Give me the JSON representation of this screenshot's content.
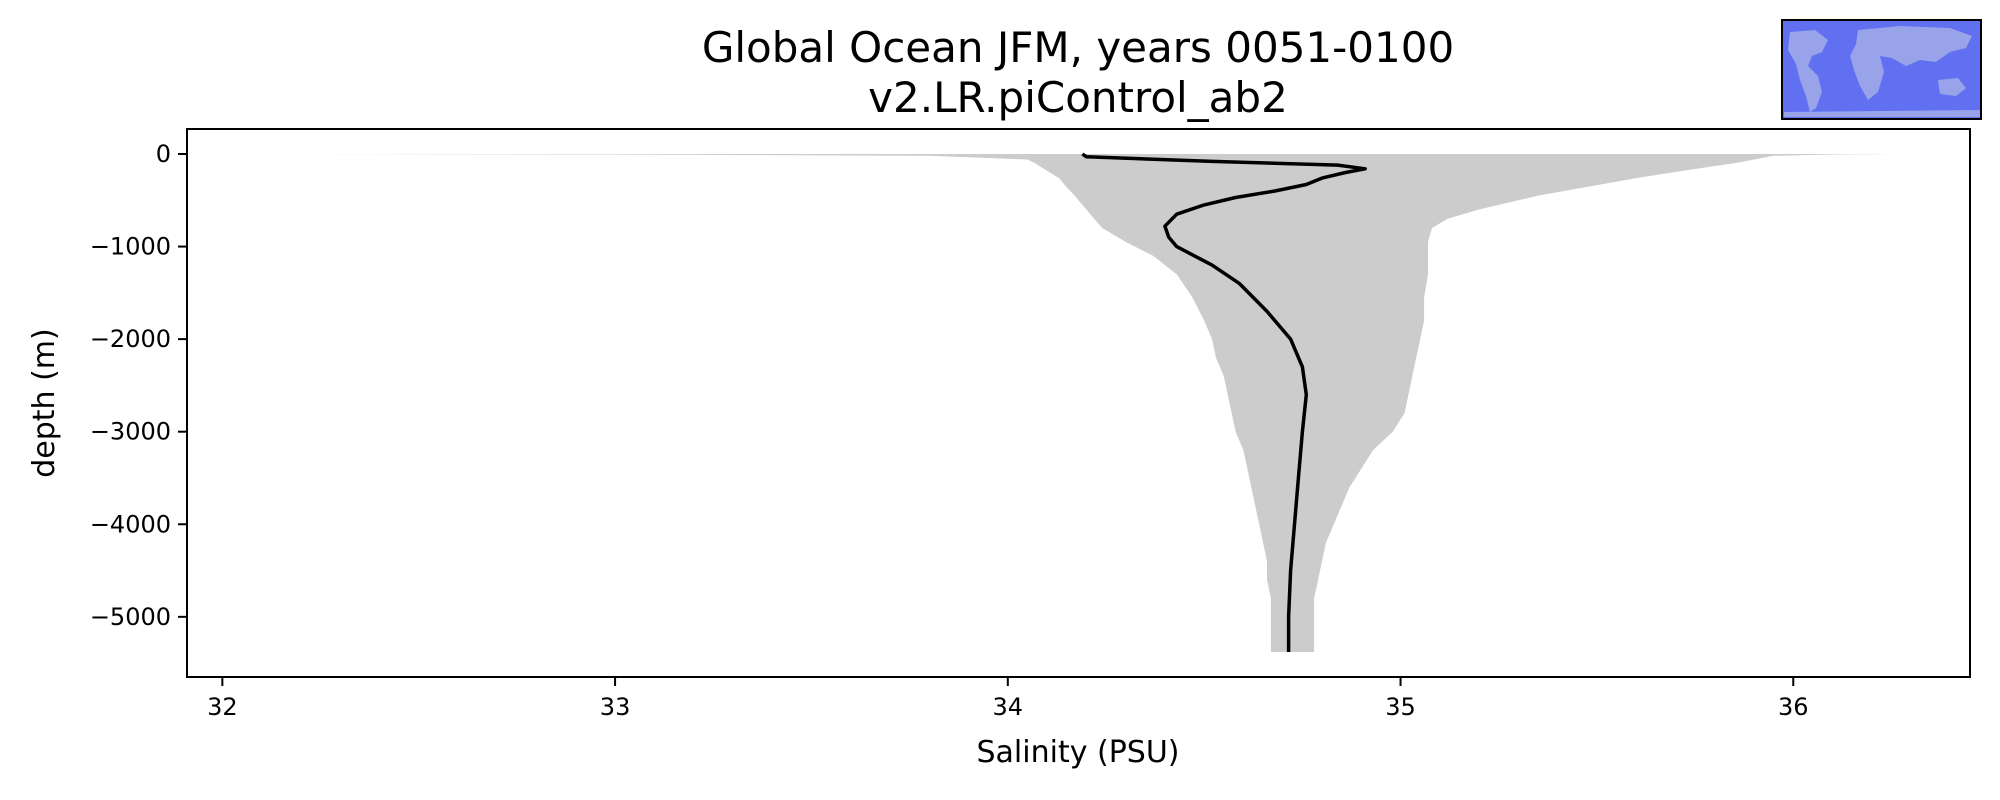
{
  "chart_data": {
    "type": "line",
    "title": "Global Ocean JFM, years 0051-0100",
    "subtitle": "v2.LR.piControl_ab2",
    "xlabel": "Salinity (PSU)",
    "ylabel": "depth (m)",
    "xlim": [
      31.91,
      36.45
    ],
    "ylim": [
      -5650,
      270
    ],
    "x_ticks": [
      32,
      33,
      34,
      35,
      36
    ],
    "x_tick_labels": [
      "32",
      "33",
      "34",
      "35",
      "36"
    ],
    "y_ticks": [
      0,
      -1000,
      -2000,
      -3000,
      -4000,
      -5000
    ],
    "y_tick_labels": [
      "0",
      "−1000",
      "−2000",
      "−3000",
      "−4000",
      "−5000"
    ],
    "grid": false,
    "legend": "none",
    "colors": {
      "mean_line": "#000000",
      "range_fill": "#cccccc",
      "inset_ocean": "#6070f0",
      "inset_land": "#a0a8e8"
    },
    "series": [
      {
        "kind": "mean",
        "depth": [
          0,
          -30,
          -80,
          -120,
          -160,
          -200,
          -260,
          -330,
          -400,
          -470,
          -550,
          -650,
          -780,
          -900,
          -1000,
          -1200,
          -1400,
          -1700,
          -2000,
          -2300,
          -2600,
          -3000,
          -3500,
          -4000,
          -4500,
          -5000,
          -5380
        ],
        "salinity": [
          34.19,
          34.2,
          34.52,
          34.84,
          34.91,
          34.86,
          34.8,
          34.76,
          34.68,
          34.58,
          34.5,
          34.43,
          34.4,
          34.41,
          34.43,
          34.52,
          34.59,
          34.66,
          34.72,
          34.75,
          34.76,
          34.75,
          34.74,
          34.73,
          34.72,
          34.715,
          34.715
        ]
      },
      {
        "kind": "range",
        "depth": [
          0,
          -5,
          -20,
          -60,
          -100,
          -130,
          -180,
          -260,
          -360,
          -450,
          -500,
          -600,
          -700,
          -800,
          -950,
          -1100,
          -1300,
          -1550,
          -1800,
          -2000,
          -2200,
          -2400,
          -2600,
          -2800,
          -3000,
          -3200,
          -3400,
          -3600,
          -3800,
          -4000,
          -4200,
          -4400,
          -4600,
          -4800,
          -5000,
          -5200,
          -5380
        ],
        "min_salinity": [
          32.12,
          33.0,
          33.8,
          34.05,
          34.07,
          34.08,
          34.1,
          34.13,
          34.15,
          34.17,
          34.18,
          34.2,
          34.22,
          34.24,
          34.3,
          34.37,
          34.43,
          34.47,
          34.5,
          34.52,
          34.53,
          34.55,
          34.56,
          34.57,
          34.58,
          34.6,
          34.61,
          34.62,
          34.63,
          34.64,
          34.65,
          34.66,
          34.66,
          34.67,
          34.67,
          34.67,
          34.67
        ],
        "max_salinity": [
          36.27,
          36.1,
          35.95,
          35.9,
          35.85,
          35.8,
          35.72,
          35.6,
          35.47,
          35.35,
          35.3,
          35.2,
          35.12,
          35.08,
          35.07,
          35.07,
          35.07,
          35.06,
          35.06,
          35.05,
          35.04,
          35.03,
          35.02,
          35.01,
          34.98,
          34.93,
          34.9,
          34.87,
          34.85,
          34.83,
          34.81,
          34.8,
          34.79,
          34.78,
          34.78,
          34.78,
          34.78
        ]
      }
    ]
  }
}
